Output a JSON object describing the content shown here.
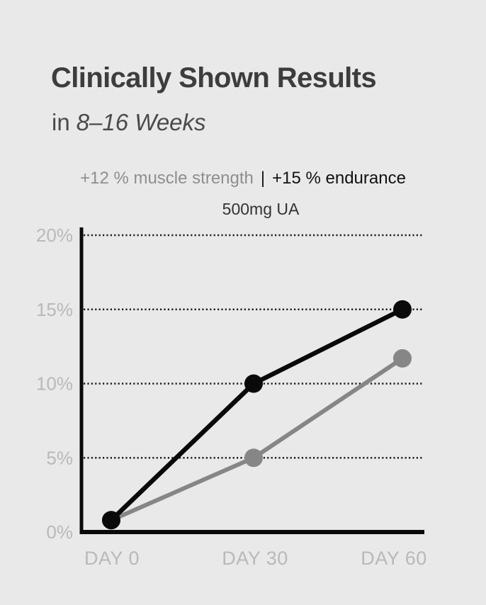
{
  "header": {
    "title": "Clinically Shown Results",
    "subtitle_prefix": "in",
    "subtitle_emphasis": "8–16 Weeks"
  },
  "stats": {
    "muscle": "+12 % muscle strength",
    "separator": "|",
    "endurance": "+15 % endurance"
  },
  "chart_data": {
    "type": "line",
    "title": "500mg UA",
    "categories": [
      "DAY 0",
      "DAY 30",
      "DAY 60"
    ],
    "x_values": [
      0,
      30,
      60
    ],
    "series": [
      {
        "name": "muscle strength",
        "color": "#868686",
        "stroke_width": 6,
        "values": [
          0.8,
          5,
          11.7
        ]
      },
      {
        "name": "endurance",
        "color": "#0a0a0a",
        "stroke_width": 6.5,
        "values": [
          0.8,
          10,
          15
        ]
      }
    ],
    "yticks": [
      0,
      5,
      10,
      15,
      20
    ],
    "ytick_labels": [
      "0%",
      "5%",
      "10%",
      "15%",
      "20%"
    ],
    "ylim": [
      0,
      20
    ],
    "grid": "dotted horizontal",
    "legend": "none",
    "marker": "filled circle"
  },
  "colors": {
    "background": "#e9e9e9",
    "title_text": "#3d3d3d",
    "subtitle_text": "#4a4a4a",
    "muted_stat": "#8e8e8e",
    "strong_stat": "#111111",
    "axis_label": "#b9b9b9",
    "axis": "#0a0a0a",
    "series_black": "#0a0a0a",
    "series_gray": "#868686"
  }
}
